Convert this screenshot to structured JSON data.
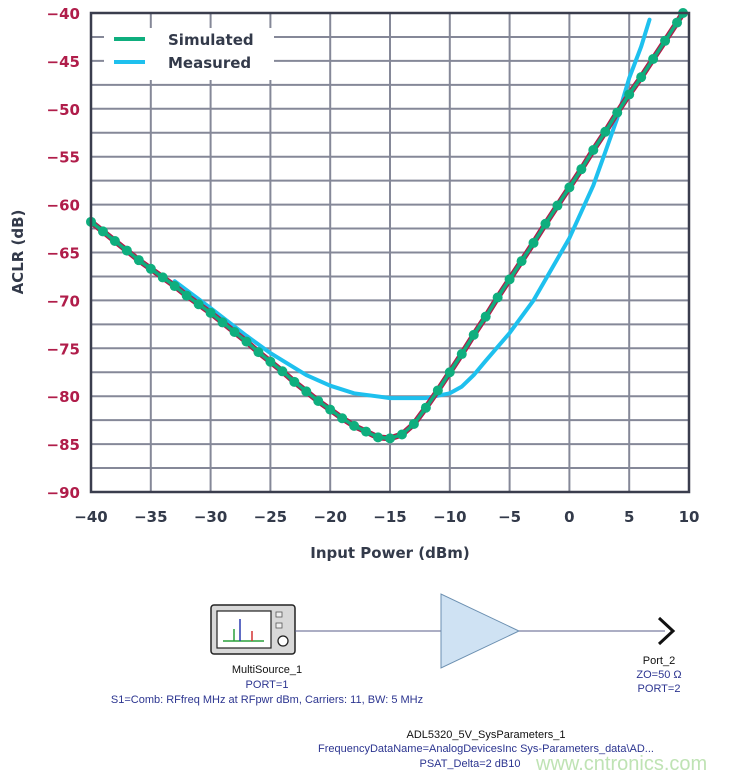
{
  "colors": {
    "tick_label_y": "#b01d4a",
    "tick_label_x": "#333a4a",
    "grid": "#858898",
    "frame": "#3a3d4d",
    "simulated": "#0fae7e",
    "simulated_outline": "#b01d4a",
    "measured": "#1ec0ee",
    "schematic_blue": "#2c3590",
    "amplifier_fill": "#cfe2f3"
  },
  "chart_data": {
    "type": "line",
    "title": "",
    "xlabel": "Input Power (dBm)",
    "ylabel": "ACLR (dB)",
    "xlim": [
      -40,
      10
    ],
    "ylim": [
      -90,
      -40
    ],
    "x_ticks": [
      "−40",
      "−35",
      "−30",
      "−25",
      "−20",
      "−15",
      "−10",
      "−5",
      "0",
      "5",
      "10"
    ],
    "y_ticks": [
      "−40",
      "−45",
      "−50",
      "−55",
      "−60",
      "−65",
      "−70",
      "−75",
      "−80",
      "−85",
      "−90"
    ],
    "x_tick_values": [
      -40,
      -35,
      -30,
      -25,
      -20,
      -15,
      -10,
      -5,
      0,
      5,
      10
    ],
    "y_tick_values": [
      -40,
      -45,
      -50,
      -55,
      -60,
      -65,
      -70,
      -75,
      -80,
      -85,
      -90
    ],
    "grid": true,
    "minor_y_grid_step": 2.5,
    "legend_position": "top-left",
    "series": [
      {
        "name": "Simulated",
        "markers": true,
        "x": [
          -40,
          -39,
          -38,
          -37,
          -36,
          -35,
          -34,
          -33,
          -32,
          -31,
          -30,
          -29,
          -28,
          -27,
          -26,
          -25,
          -24,
          -23,
          -22,
          -21,
          -20,
          -19,
          -18,
          -17,
          -16,
          -15,
          -14,
          -13,
          -12,
          -11,
          -10,
          -9,
          -8,
          -7,
          -6,
          -5,
          -4,
          -3,
          -2,
          -1,
          0,
          1,
          2,
          3,
          4,
          5,
          6,
          7,
          8,
          9,
          9.5
        ],
        "y": [
          -61.8,
          -62.8,
          -63.8,
          -64.8,
          -65.8,
          -66.7,
          -67.6,
          -68.5,
          -69.5,
          -70.4,
          -71.3,
          -72.3,
          -73.3,
          -74.3,
          -75.4,
          -76.4,
          -77.4,
          -78.5,
          -79.5,
          -80.5,
          -81.4,
          -82.3,
          -83.1,
          -83.7,
          -84.3,
          -84.4,
          -84.0,
          -82.9,
          -81.2,
          -79.4,
          -77.5,
          -75.6,
          -73.6,
          -71.7,
          -69.7,
          -67.8,
          -65.9,
          -64.0,
          -62.0,
          -60.1,
          -58.2,
          -56.3,
          -54.3,
          -52.4,
          -50.4,
          -48.5,
          -46.7,
          -44.8,
          -42.9,
          -41.0,
          -40.0
        ]
      },
      {
        "name": "Measured",
        "markers": false,
        "x": [
          -33,
          -30,
          -27,
          -25,
          -22,
          -20,
          -18,
          -15,
          -12,
          -10,
          -9,
          -8,
          -7,
          -5,
          -3,
          0,
          2,
          3,
          4,
          5,
          6,
          6.7
        ],
        "y": [
          -68,
          -70.8,
          -73.7,
          -75.5,
          -77.8,
          -78.9,
          -79.7,
          -80.2,
          -80.2,
          -79.7,
          -79,
          -77.8,
          -76.3,
          -73.4,
          -70,
          -63.5,
          -58,
          -54.5,
          -51,
          -46.8,
          -43.5,
          -40.7
        ]
      }
    ]
  },
  "schematic": {
    "source": {
      "name": "MultiSource_1",
      "port": "PORT=1",
      "params": "S1=Comb: RFfreq MHz at RFpwr dBm, Carriers: 11, BW: 5 MHz"
    },
    "amplifier": {
      "name": "ADL5320_5V_SysParameters_1",
      "param1": "FrequencyDataName=AnalogDevicesInc Sys-Parameters_data\\AD...",
      "param2": "PSAT_Delta=2 dB10"
    },
    "port": {
      "name": "Port_2",
      "impedance": "ZO=50 Ω",
      "port": "PORT=2"
    }
  },
  "watermark": "www.cntronics.com"
}
